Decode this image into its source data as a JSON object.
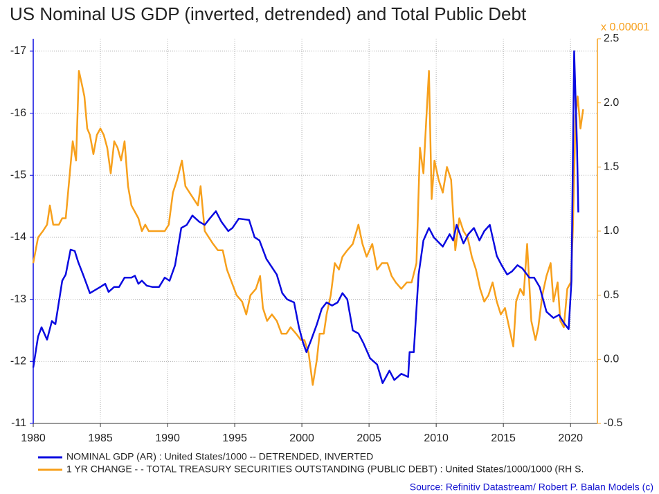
{
  "chart_data": {
    "type": "line",
    "title": "US Nominal US GDP (inverted, detrended) and Total Public Debt",
    "y2label": "x 0.00001",
    "source": "Source: Refinitiv Datastream/ Robert P. Balan Models (c)",
    "xlim": [
      1980,
      2022
    ],
    "xticks": [
      1980,
      1985,
      1990,
      1995,
      2000,
      2005,
      2010,
      2015,
      2020
    ],
    "ylim": [
      -11,
      -17.2
    ],
    "yticks": [
      -17,
      -16,
      -15,
      -14,
      -13,
      -12,
      -11
    ],
    "y2lim": [
      -0.5,
      2.5
    ],
    "y2ticks": [
      -0.5,
      {
        "value": 0,
        "label": "0.0"
      },
      0.5,
      {
        "value": 1,
        "label": "1.0"
      },
      1.5,
      {
        "value": 2,
        "label": "2.0"
      },
      2.5
    ],
    "grid": true,
    "legend": "bottom",
    "series": [
      {
        "name": "NOMINAL GDP (AR) : United States/1000 -- DETRENDED, INVERTED",
        "color": "#0a0ae0",
        "x": [
          1980.0,
          1980.36,
          1980.62,
          1981.03,
          1981.39,
          1981.65,
          1982.16,
          1982.42,
          1982.78,
          1983.09,
          1983.35,
          1983.71,
          1984.22,
          1985.0,
          1985.36,
          1985.61,
          1986.03,
          1986.39,
          1986.8,
          1987.31,
          1987.57,
          1987.83,
          1988.09,
          1988.45,
          1988.86,
          1989.37,
          1989.79,
          1990.15,
          1990.56,
          1991.02,
          1991.43,
          1991.85,
          1992.36,
          1992.77,
          1993.13,
          1993.6,
          1994.01,
          1994.52,
          1994.83,
          1995.3,
          1996.07,
          1996.48,
          1996.84,
          1997.36,
          1998.13,
          1998.54,
          1998.9,
          1999.42,
          1999.78,
          2000.09,
          2000.34,
          2000.7,
          2001.12,
          2001.48,
          2001.84,
          2002.25,
          2002.66,
          2003.02,
          2003.38,
          2003.79,
          2004.21,
          2004.57,
          2005.08,
          2005.6,
          2006.01,
          2006.52,
          2006.88,
          2007.4,
          2007.91,
          2008.02,
          2008.33,
          2008.69,
          2009.05,
          2009.46,
          2009.82,
          2010.49,
          2011.0,
          2011.26,
          2011.52,
          2012.03,
          2012.39,
          2012.81,
          2013.22,
          2013.58,
          2013.99,
          2014.51,
          2014.87,
          2015.28,
          2015.64,
          2016.05,
          2016.41,
          2016.93,
          2017.29,
          2017.7,
          2018.21,
          2018.73,
          2019.14,
          2019.5,
          2019.86,
          2020.07,
          2020.27,
          2020.48,
          2020.58
        ],
        "values": [
          -11.9,
          -12.4,
          -12.55,
          -12.35,
          -12.65,
          -12.6,
          -13.3,
          -13.4,
          -13.8,
          -13.78,
          -13.6,
          -13.4,
          -13.1,
          -13.2,
          -13.25,
          -13.12,
          -13.2,
          -13.2,
          -13.35,
          -13.35,
          -13.38,
          -13.25,
          -13.3,
          -13.22,
          -13.2,
          -13.2,
          -13.35,
          -13.3,
          -13.55,
          -14.15,
          -14.2,
          -14.35,
          -14.25,
          -14.2,
          -14.3,
          -14.42,
          -14.25,
          -14.1,
          -14.15,
          -14.3,
          -14.28,
          -14.0,
          -13.95,
          -13.65,
          -13.4,
          -13.1,
          -13.0,
          -12.95,
          -12.55,
          -12.3,
          -12.15,
          -12.35,
          -12.6,
          -12.85,
          -12.95,
          -12.9,
          -12.95,
          -13.1,
          -13.0,
          -12.5,
          -12.45,
          -12.3,
          -12.05,
          -11.95,
          -11.65,
          -11.85,
          -11.7,
          -11.8,
          -11.75,
          -12.15,
          -12.15,
          -13.4,
          -13.95,
          -14.15,
          -14.0,
          -13.85,
          -14.05,
          -13.95,
          -14.2,
          -13.9,
          -14.05,
          -14.15,
          -13.95,
          -14.1,
          -14.2,
          -13.7,
          -13.55,
          -13.4,
          -13.45,
          -13.55,
          -13.5,
          -13.35,
          -13.35,
          -13.2,
          -12.8,
          -12.7,
          -12.75,
          -12.62,
          -12.52,
          -13.3,
          -17.0,
          -15.5,
          -14.4
        ]
      },
      {
        "name": "1 YR CHANGE - - TOTAL TREASURY SECURITIES OUTSTANDING (PUBLIC DEBT) : United States/1000/1000 (RH S.",
        "color": "#f7a01c",
        "axis": "y2",
        "x": [
          1980.0,
          1980.36,
          1980.72,
          1981.03,
          1981.24,
          1981.49,
          1981.91,
          1982.16,
          1982.42,
          1982.68,
          1982.94,
          1983.19,
          1983.4,
          1983.61,
          1983.81,
          1984.02,
          1984.22,
          1984.48,
          1984.74,
          1985.0,
          1985.25,
          1985.51,
          1985.77,
          1986.03,
          1986.28,
          1986.54,
          1986.8,
          1987.06,
          1987.31,
          1987.57,
          1987.83,
          1988.09,
          1988.34,
          1988.6,
          1988.86,
          1989.37,
          1989.79,
          1990.09,
          1990.4,
          1990.71,
          1991.07,
          1991.33,
          1991.64,
          1991.95,
          1992.26,
          1992.46,
          1992.77,
          1993.08,
          1993.39,
          1993.75,
          1994.11,
          1994.42,
          1994.78,
          1995.14,
          1995.55,
          1995.86,
          1996.17,
          1996.58,
          1996.89,
          1997.1,
          1997.41,
          1997.77,
          1998.13,
          1998.49,
          1998.85,
          1999.16,
          1999.57,
          1999.93,
          2000.19,
          2000.5,
          2000.81,
          2001.12,
          2001.32,
          2001.63,
          2001.84,
          2002.15,
          2002.45,
          2002.76,
          2003.02,
          2003.38,
          2003.79,
          2004.21,
          2004.51,
          2004.82,
          2005.24,
          2005.6,
          2005.96,
          2006.37,
          2006.68,
          2006.99,
          2007.4,
          2007.81,
          2008.17,
          2008.53,
          2008.79,
          2009.05,
          2009.25,
          2009.46,
          2009.66,
          2009.87,
          2010.18,
          2010.49,
          2010.8,
          2011.11,
          2011.42,
          2011.72,
          2012.03,
          2012.34,
          2012.65,
          2012.96,
          2013.27,
          2013.58,
          2013.89,
          2014.2,
          2014.51,
          2014.81,
          2015.12,
          2015.43,
          2015.74,
          2015.95,
          2016.26,
          2016.51,
          2016.77,
          2017.08,
          2017.39,
          2017.6,
          2017.9,
          2018.21,
          2018.52,
          2018.73,
          2019.04,
          2019.24,
          2019.5,
          2019.76,
          2020.02,
          2020.17,
          2020.38,
          2020.53,
          2020.74,
          2020.94
        ],
        "values": [
          0.75,
          0.95,
          1.0,
          1.05,
          1.2,
          1.05,
          1.05,
          1.1,
          1.1,
          1.4,
          1.7,
          1.55,
          2.25,
          2.15,
          2.05,
          1.8,
          1.75,
          1.6,
          1.75,
          1.8,
          1.75,
          1.65,
          1.45,
          1.7,
          1.65,
          1.55,
          1.7,
          1.35,
          1.2,
          1.15,
          1.1,
          1.0,
          1.05,
          1.0,
          1.0,
          1.0,
          1.0,
          1.05,
          1.3,
          1.4,
          1.55,
          1.35,
          1.3,
          1.25,
          1.2,
          1.35,
          1.0,
          0.95,
          0.9,
          0.85,
          0.85,
          0.7,
          0.6,
          0.5,
          0.45,
          0.35,
          0.5,
          0.55,
          0.65,
          0.4,
          0.3,
          0.35,
          0.3,
          0.2,
          0.2,
          0.25,
          0.2,
          0.15,
          0.15,
          0.05,
          -0.2,
          0.0,
          0.2,
          0.2,
          0.35,
          0.5,
          0.75,
          0.7,
          0.8,
          0.85,
          0.9,
          1.05,
          0.9,
          0.8,
          0.9,
          0.7,
          0.75,
          0.75,
          0.65,
          0.6,
          0.55,
          0.6,
          0.6,
          0.75,
          1.65,
          1.45,
          1.85,
          2.25,
          1.25,
          1.55,
          1.4,
          1.3,
          1.5,
          1.4,
          0.85,
          1.1,
          1.0,
          0.95,
          0.8,
          0.7,
          0.55,
          0.45,
          0.5,
          0.6,
          0.45,
          0.35,
          0.4,
          0.25,
          0.1,
          0.45,
          0.55,
          0.5,
          0.9,
          0.3,
          0.15,
          0.25,
          0.5,
          0.65,
          0.75,
          0.45,
          0.6,
          0.3,
          0.25,
          0.55,
          0.6,
          1.0,
          1.9,
          2.05,
          1.8,
          1.95
        ]
      }
    ]
  }
}
